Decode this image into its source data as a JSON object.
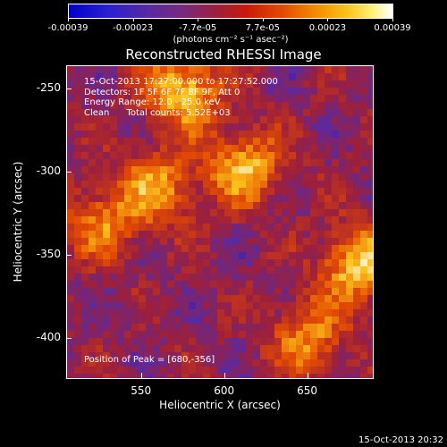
{
  "colorbar": {
    "tick_labels": [
      "-0.00039",
      "-0.00023",
      "-7.7e-05",
      "7.7e-05",
      "0.00023",
      "0.00039"
    ],
    "unit_label": "(photons cm⁻² s⁻¹ asec⁻²)",
    "colors": [
      "#0000cc",
      "#5a2aa0",
      "#9e1f3a",
      "#e34a00",
      "#fcc21a",
      "#ffffff"
    ]
  },
  "chart_data": {
    "type": "heatmap",
    "title": "Reconstructed RHESSI Image",
    "xlabel": "Heliocentric X (arcsec)",
    "ylabel": "Heliocentric Y (arcsec)",
    "xlim": [
      505,
      690
    ],
    "ylim": [
      -425,
      -236
    ],
    "x_ticks": [
      "550",
      "600",
      "650"
    ],
    "y_ticks": [
      "-250",
      "-300",
      "-350",
      "-400"
    ],
    "value_range": [
      -0.00039,
      0.00039
    ],
    "annotations": {
      "time": "15-Oct-2013 17:27:00.000 to 17:27:52.000",
      "detectors": "Detectors: 1F 5F 6F 7F 8F 9F, Att 0",
      "energy": "Energy Range: 12.0 - 25.0 keV",
      "clean": "Clean      Total counts: 5.52E+03",
      "peak": "Position of Peak = [680,-356]"
    },
    "bright_sources": [
      {
        "x": 575,
        "y": -250,
        "intensity": 0.00039
      },
      {
        "x": 612,
        "y": -297,
        "intensity": 0.00035
      },
      {
        "x": 560,
        "y": -310,
        "intensity": 0.0003
      },
      {
        "x": 680,
        "y": -356,
        "intensity": 0.00039
      },
      {
        "x": 525,
        "y": -330,
        "intensity": 0.00025
      },
      {
        "x": 650,
        "y": -400,
        "intensity": 0.00028
      }
    ]
  },
  "footer": {
    "timestamp": "15-Oct-2013 20:32"
  }
}
